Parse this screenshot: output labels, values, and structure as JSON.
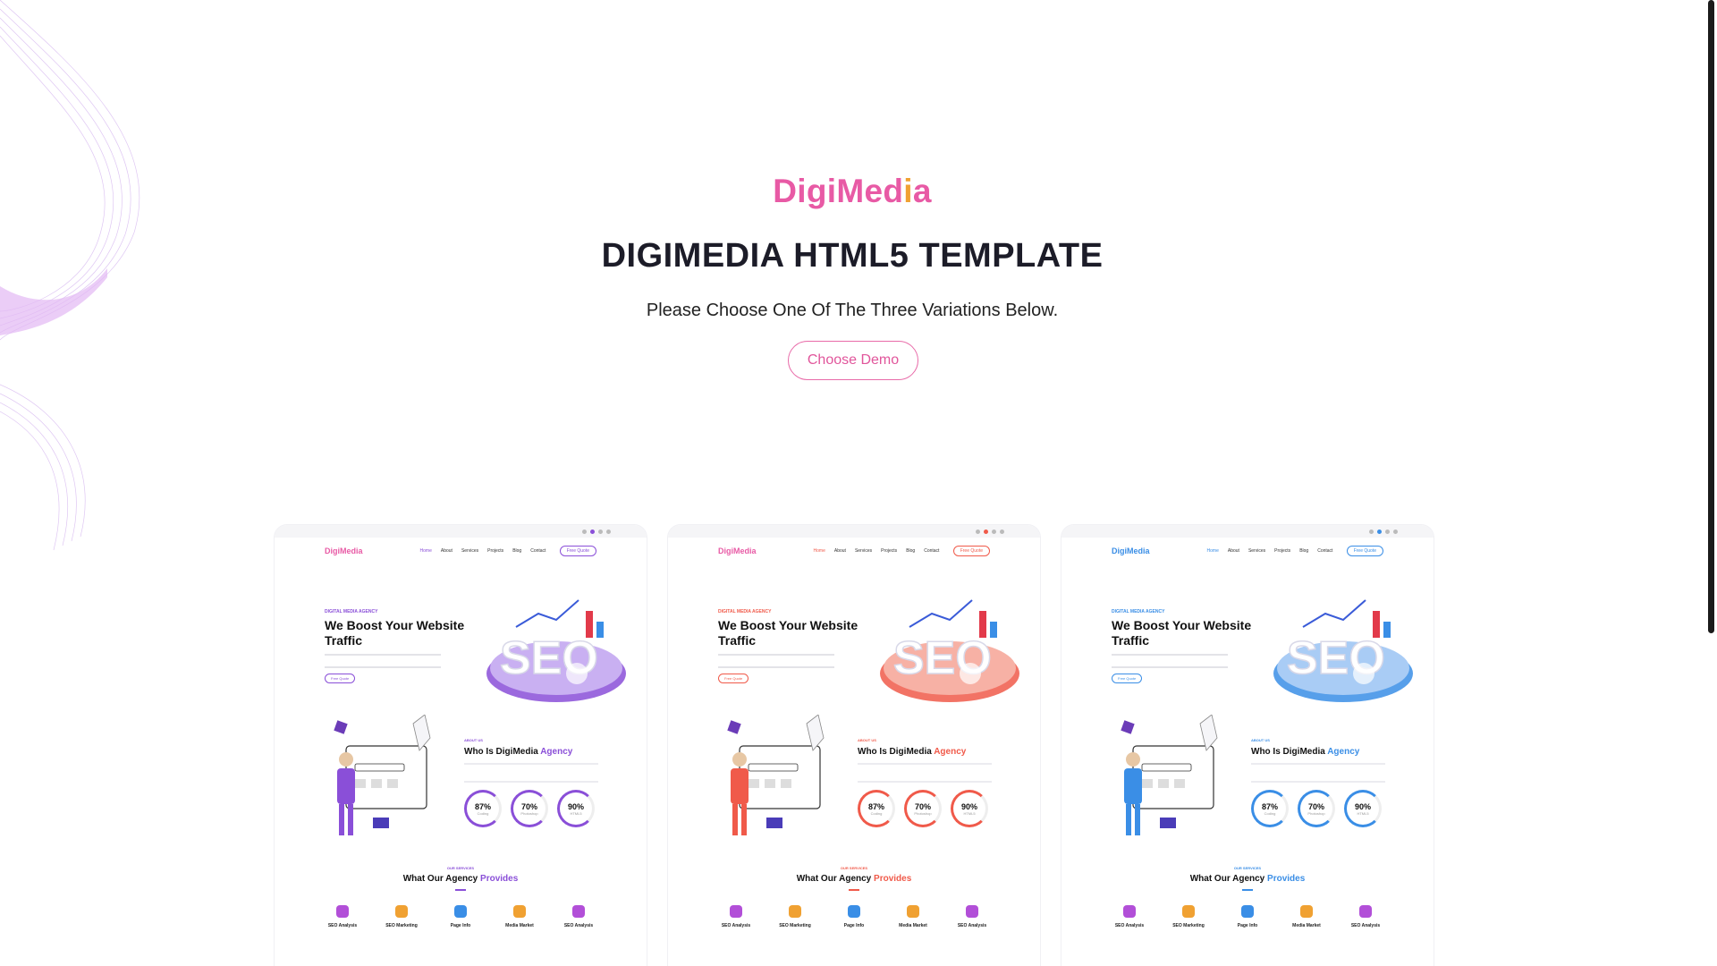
{
  "hero": {
    "logo": {
      "part1": "DigiMed",
      "part2": "i",
      "part3": "a"
    },
    "title": "DIGIMEDIA HTML5 TEMPLATE",
    "subtitle": "Please Choose One Of The Three Variations Below.",
    "cta_label": "Choose Demo"
  },
  "colors": {
    "brand_pink": "#e85aa5",
    "brand_orange": "#f0a132",
    "variant_purple": "#8a4fd8",
    "variant_red": "#f05a4a",
    "variant_blue": "#3a8ee6"
  },
  "demos": [
    {
      "brand": "DigiMedia",
      "nav": [
        "Home",
        "About",
        "Services",
        "Projects",
        "Blog",
        "Contact"
      ],
      "quote": "Free Quote",
      "hero_tag": "DIGITAL MEDIA AGENCY",
      "hero_title": "We Boost Your Website Traffic",
      "hero_button": "Free Quote",
      "about_tag": "ABOUT US",
      "about_title": "Who Is DigiMedia",
      "about_title_accent": "Agency",
      "stats": [
        {
          "value": "87%",
          "label": "Coding"
        },
        {
          "value": "70%",
          "label": "Photoshop"
        },
        {
          "value": "90%",
          "label": "HTML5"
        }
      ],
      "services_tag": "OUR SERVICES",
      "services_title": "What Our Agency",
      "services_title_accent": "Provides",
      "services": [
        "SEO Analysis",
        "SEO Marketing",
        "Page Info",
        "Media Market",
        "SEO Analysis"
      ]
    },
    {
      "brand": "DigiMedia",
      "nav": [
        "Home",
        "About",
        "Services",
        "Projects",
        "Blog",
        "Contact"
      ],
      "quote": "Free Quote",
      "hero_tag": "DIGITAL MEDIA AGENCY",
      "hero_title": "We Boost Your Website Traffic",
      "hero_button": "Free Quote",
      "about_tag": "ABOUT US",
      "about_title": "Who Is DigiMedia",
      "about_title_accent": "Agency",
      "stats": [
        {
          "value": "87%",
          "label": "Coding"
        },
        {
          "value": "70%",
          "label": "Photoshop"
        },
        {
          "value": "90%",
          "label": "HTML5"
        }
      ],
      "services_tag": "OUR SERVICES",
      "services_title": "What Our Agency",
      "services_title_accent": "Provides",
      "services": [
        "SEO Analysis",
        "SEO Marketing",
        "Page Info",
        "Media Market",
        "SEO Analysis"
      ]
    },
    {
      "brand": "DigiMedia",
      "nav": [
        "Home",
        "About",
        "Services",
        "Projects",
        "Blog",
        "Contact"
      ],
      "quote": "Free Quote",
      "hero_tag": "DIGITAL MEDIA AGENCY",
      "hero_title": "We Boost Your Website Traffic",
      "hero_button": "Free Quote",
      "about_tag": "ABOUT US",
      "about_title": "Who Is DigiMedia",
      "about_title_accent": "Agency",
      "stats": [
        {
          "value": "87%",
          "label": "Coding"
        },
        {
          "value": "70%",
          "label": "Photoshop"
        },
        {
          "value": "90%",
          "label": "HTML5"
        }
      ],
      "services_tag": "OUR SERVICES",
      "services_title": "What Our Agency",
      "services_title_accent": "Provides",
      "services": [
        "SEO Analysis",
        "SEO Marketing",
        "Page Info",
        "Media Market",
        "SEO Analysis"
      ]
    }
  ]
}
